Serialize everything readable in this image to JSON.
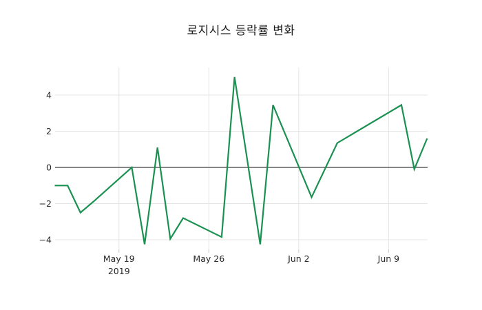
{
  "chart_data": {
    "type": "line",
    "title": "로지시스 등락률 변화",
    "xlabel": "",
    "ylabel": "",
    "grid": true,
    "legend": false,
    "ylim": [
      -4.55,
      5.5
    ],
    "x_axis_unit": "date",
    "x_ticks": [
      {
        "label": "May 19",
        "sublabel": "2019",
        "day_offset": 5
      },
      {
        "label": "May 26",
        "sublabel": "",
        "day_offset": 12
      },
      {
        "label": "Jun 2",
        "sublabel": "",
        "day_offset": 19
      },
      {
        "label": "Jun 9",
        "sublabel": "",
        "day_offset": 26
      }
    ],
    "y_ticks": [
      {
        "label": "4",
        "value": 4
      },
      {
        "label": "2",
        "value": 2
      },
      {
        "label": "0",
        "value": 0
      },
      {
        "label": "−2",
        "value": -2
      },
      {
        "label": "−4",
        "value": -4
      }
    ],
    "zero_line": true,
    "points": [
      {
        "date": "May 14",
        "day_offset": 0,
        "value": -1.0
      },
      {
        "date": "May 15",
        "day_offset": 1,
        "value": -1.0
      },
      {
        "date": "May 16",
        "day_offset": 2,
        "value": -2.5
      },
      {
        "date": "May 17",
        "day_offset": 3,
        "value": -1.9
      },
      {
        "date": "May 20",
        "day_offset": 6,
        "value": 0.0
      },
      {
        "date": "May 21",
        "day_offset": 7,
        "value": -4.25
      },
      {
        "date": "May 22",
        "day_offset": 8,
        "value": 1.1
      },
      {
        "date": "May 23",
        "day_offset": 9,
        "value": -3.95
      },
      {
        "date": "May 24",
        "day_offset": 10,
        "value": -2.8
      },
      {
        "date": "May 27",
        "day_offset": 13,
        "value": -3.85
      },
      {
        "date": "May 28",
        "day_offset": 14,
        "value": 5.0
      },
      {
        "date": "May 30",
        "day_offset": 16,
        "value": -4.25
      },
      {
        "date": "May 31",
        "day_offset": 17,
        "value": 3.45
      },
      {
        "date": "Jun 3",
        "day_offset": 20,
        "value": -1.65
      },
      {
        "date": "Jun 5",
        "day_offset": 22,
        "value": 1.35
      },
      {
        "date": "Jun 10",
        "day_offset": 27,
        "value": 3.45
      },
      {
        "date": "Jun 11",
        "day_offset": 28,
        "value": -0.1
      },
      {
        "date": "Jun 12",
        "day_offset": 29,
        "value": 1.6
      }
    ],
    "colors": {
      "line": "#1a9150",
      "grid": "#e5e5e5",
      "zero_line": "#3d3d3d",
      "tick_text": "#262626",
      "title_text": "#1a1a1a",
      "background": "#ffffff"
    }
  }
}
